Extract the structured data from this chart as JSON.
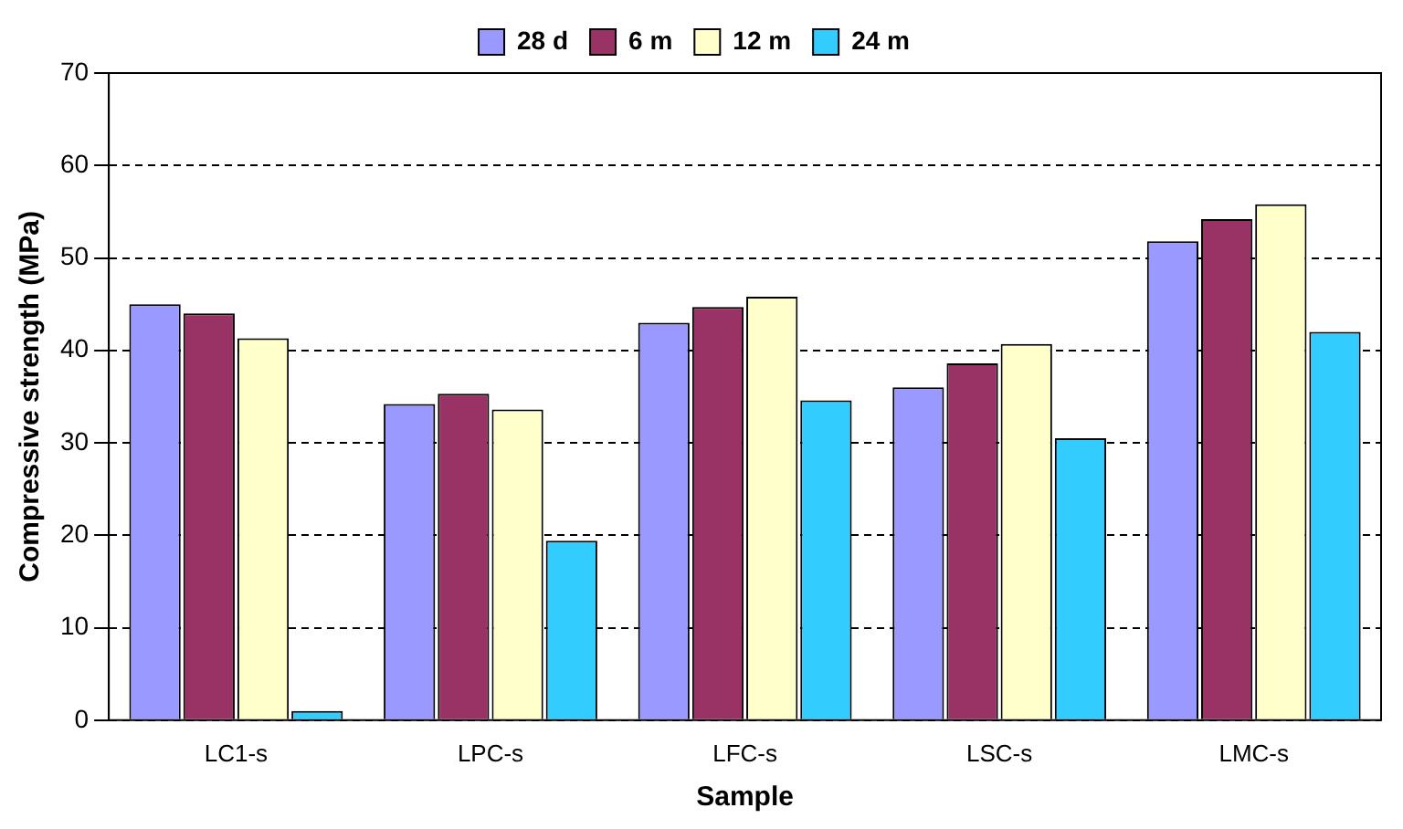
{
  "chart_data": {
    "type": "bar",
    "xlabel": "Sample",
    "ylabel": "Compressive strength (MPa)",
    "categories": [
      "LC1-s",
      "LPC-s",
      "LFC-s",
      "LSC-s",
      "LMC-s"
    ],
    "series": [
      {
        "name": "28 d",
        "color": "#9999ff",
        "values": [
          45,
          34.2,
          43,
          36,
          51.8
        ]
      },
      {
        "name": "6 m",
        "color": "#993366",
        "values": [
          44,
          35.3,
          44.7,
          38.6,
          54.2
        ]
      },
      {
        "name": "12 m",
        "color": "#ffffcc",
        "values": [
          41.3,
          33.6,
          45.8,
          40.7,
          55.8
        ]
      },
      {
        "name": "24 m",
        "color": "#33ccff",
        "values": [
          1,
          19.4,
          34.6,
          30.5,
          42
        ]
      }
    ],
    "ylim": [
      0,
      70
    ],
    "yticks": [
      0,
      10,
      20,
      30,
      40,
      50,
      60,
      70
    ],
    "grid": "y",
    "legend": "top"
  }
}
